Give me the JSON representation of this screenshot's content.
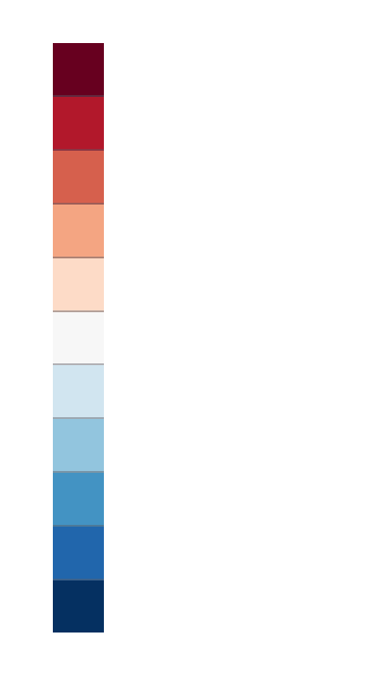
{
  "colorbar": {
    "orientation": "vertical",
    "swatches": [
      {
        "color": "#67001f"
      },
      {
        "color": "#b2182b"
      },
      {
        "color": "#d6604d"
      },
      {
        "color": "#f4a582"
      },
      {
        "color": "#fddbc7"
      },
      {
        "color": "#f7f7f7"
      },
      {
        "color": "#d1e5f0"
      },
      {
        "color": "#92c5de"
      },
      {
        "color": "#4393c3"
      },
      {
        "color": "#2166ac"
      },
      {
        "color": "#053061"
      }
    ]
  }
}
